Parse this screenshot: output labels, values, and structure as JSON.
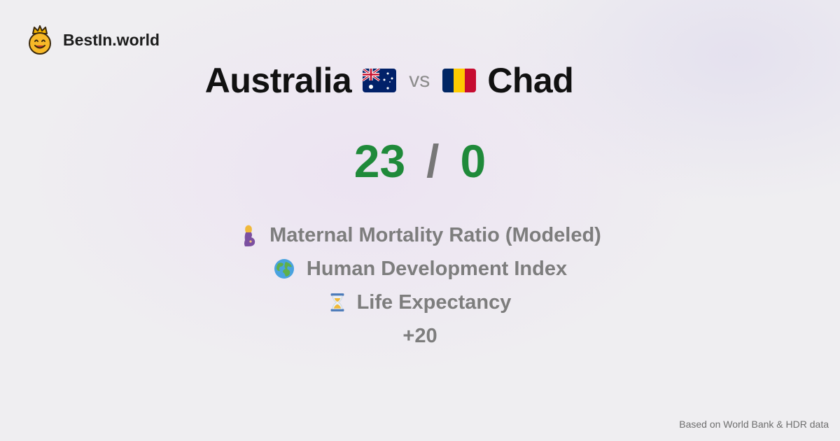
{
  "brand": {
    "name": "BestIn.world",
    "icon": "crowned-smiley-icon"
  },
  "comparison": {
    "left_country": "Australia",
    "left_flag": "australia-flag-icon",
    "vs_label": "vs",
    "right_country": "Chad",
    "right_flag": "chad-flag-icon"
  },
  "score": {
    "left": "23",
    "separator": "/",
    "right": "0",
    "color": "#1f8a3a"
  },
  "metrics": [
    {
      "icon": "pregnant-woman-icon",
      "label": "Maternal Mortality Ratio (Modeled)"
    },
    {
      "icon": "globe-icon",
      "label": "Human Development Index"
    },
    {
      "icon": "hourglass-icon",
      "label": "Life Expectancy"
    }
  ],
  "more_label": "+20",
  "footer": {
    "source_text": "Based on World Bank & HDR data"
  }
}
